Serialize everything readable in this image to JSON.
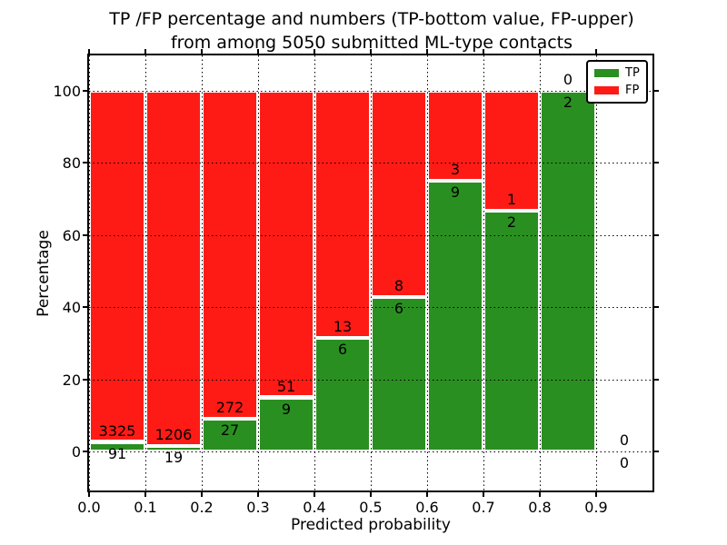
{
  "chart_data": {
    "type": "bar",
    "stacked": true,
    "title": "TP /FP percentage and numbers (TP-bottom value, FP-upper)\nfrom among 5050 submitted ML-type contacts",
    "title_lines": [
      "TP /FP percentage and numbers (TP-bottom value, FP-upper)",
      "from among 5050 submitted ML-type contacts"
    ],
    "xlabel": "Predicted probability",
    "ylabel": "Percentage",
    "xlim": [
      0.0,
      1.0
    ],
    "ylim": [
      -10.8,
      109.8
    ],
    "grid": "dotted",
    "x_ticks": [
      {
        "value": 0.0,
        "label": "0.0"
      },
      {
        "value": 0.1,
        "label": "0.1"
      },
      {
        "value": 0.2,
        "label": "0.2"
      },
      {
        "value": 0.3,
        "label": "0.3"
      },
      {
        "value": 0.4,
        "label": "0.4"
      },
      {
        "value": 0.5,
        "label": "0.5"
      },
      {
        "value": 0.6,
        "label": "0.6"
      },
      {
        "value": 0.7,
        "label": "0.7"
      },
      {
        "value": 0.8,
        "label": "0.8"
      },
      {
        "value": 0.9,
        "label": "0.9"
      }
    ],
    "y_ticks": [
      {
        "value": 0,
        "label": "0"
      },
      {
        "value": 20,
        "label": "20"
      },
      {
        "value": 40,
        "label": "40"
      },
      {
        "value": 60,
        "label": "60"
      },
      {
        "value": 80,
        "label": "80"
      },
      {
        "value": 100,
        "label": "100"
      }
    ],
    "legend": {
      "position": "upper right",
      "entries": [
        {
          "label": "TP",
          "color": "#2a8f21"
        },
        {
          "label": "FP",
          "color": "#fe1b16"
        }
      ]
    },
    "colors": {
      "tp": "#2a8f21",
      "fp": "#fe1b16",
      "bar_edge": "#ffffff"
    },
    "bins": [
      {
        "x_range": [
          0.0,
          0.1
        ],
        "tp_count": 91,
        "fp_count": 3325,
        "tp_pct": 2.66,
        "fp_pct": 97.34,
        "has_bar": true
      },
      {
        "x_range": [
          0.1,
          0.2
        ],
        "tp_count": 19,
        "fp_count": 1206,
        "tp_pct": 1.55,
        "fp_pct": 98.45,
        "has_bar": true
      },
      {
        "x_range": [
          0.2,
          0.3
        ],
        "tp_count": 27,
        "fp_count": 272,
        "tp_pct": 9.03,
        "fp_pct": 90.97,
        "has_bar": true
      },
      {
        "x_range": [
          0.3,
          0.4
        ],
        "tp_count": 9,
        "fp_count": 51,
        "tp_pct": 15.0,
        "fp_pct": 85.0,
        "has_bar": true
      },
      {
        "x_range": [
          0.4,
          0.5
        ],
        "tp_count": 6,
        "fp_count": 13,
        "tp_pct": 31.58,
        "fp_pct": 68.42,
        "has_bar": true
      },
      {
        "x_range": [
          0.5,
          0.6
        ],
        "tp_count": 6,
        "fp_count": 8,
        "tp_pct": 42.86,
        "fp_pct": 57.14,
        "has_bar": true
      },
      {
        "x_range": [
          0.6,
          0.7
        ],
        "tp_count": 9,
        "fp_count": 3,
        "tp_pct": 75.0,
        "fp_pct": 25.0,
        "has_bar": true
      },
      {
        "x_range": [
          0.7,
          0.8
        ],
        "tp_count": 2,
        "fp_count": 1,
        "tp_pct": 66.67,
        "fp_pct": 33.33,
        "has_bar": true
      },
      {
        "x_range": [
          0.8,
          0.9
        ],
        "tp_count": 2,
        "fp_count": 0,
        "tp_pct": 100.0,
        "fp_pct": 0.0,
        "has_bar": true
      },
      {
        "x_range": [
          0.9,
          1.0
        ],
        "tp_count": 0,
        "fp_count": 0,
        "tp_pct": null,
        "fp_pct": null,
        "has_bar": false
      }
    ]
  }
}
